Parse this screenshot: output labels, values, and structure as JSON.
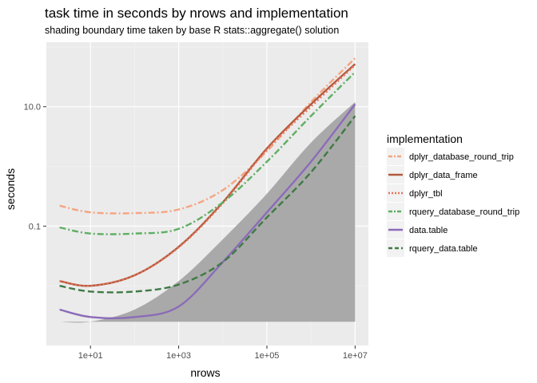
{
  "chart_data": {
    "type": "line",
    "title": "task time in seconds by nrows and implementation",
    "subtitle": "shading boundary time taken by base R stats::aggregate() solution",
    "xlabel": "nrows",
    "ylabel": "seconds",
    "x_scale": "log10",
    "y_scale": "log10",
    "xlim": [
      1,
      20000000
    ],
    "ylim": [
      0.001,
      120
    ],
    "x_ticks": [
      10,
      1000,
      100000,
      10000000
    ],
    "x_tick_labels": [
      "1e+01",
      "1e+03",
      "1e+05",
      "1e+07"
    ],
    "y_ticks": [
      0.1,
      10
    ],
    "y_tick_labels": [
      "0.1",
      "10.0"
    ],
    "grid": true,
    "legend_position": "right",
    "legend_title": "implementation",
    "shading": {
      "x": [
        2,
        10,
        100,
        1000,
        10000,
        100000,
        1000000,
        10000000
      ],
      "y": [
        0.0025,
        0.0025,
        0.004,
        0.012,
        0.06,
        0.35,
        2.5,
        12
      ]
    },
    "series": [
      {
        "name": "dplyr_database_round_trip",
        "color": "#f4a582",
        "dash": "dotdash",
        "x": [
          2,
          10,
          100,
          1000,
          10000,
          100000,
          1000000,
          10000000
        ],
        "y": [
          0.22,
          0.17,
          0.165,
          0.19,
          0.4,
          1.8,
          12,
          65
        ]
      },
      {
        "name": "dplyr_data_frame",
        "color": "#b35a3e",
        "dash": "solid",
        "x": [
          2,
          10,
          100,
          1000,
          10000,
          100000,
          1000000,
          10000000
        ],
        "y": [
          0.012,
          0.01,
          0.015,
          0.045,
          0.25,
          2.0,
          11,
          52
        ]
      },
      {
        "name": "dplyr_tbl",
        "color": "#e5735a",
        "dash": "dotted",
        "x": [
          2,
          10,
          100,
          1000,
          10000,
          100000,
          1000000,
          10000000
        ],
        "y": [
          0.012,
          0.01,
          0.015,
          0.044,
          0.24,
          1.9,
          10,
          50
        ]
      },
      {
        "name": "rquery_database_round_trip",
        "color": "#5fae63",
        "dash": "dotdash",
        "x": [
          2,
          10,
          100,
          1000,
          10000,
          100000,
          1000000,
          10000000
        ],
        "y": [
          0.095,
          0.075,
          0.075,
          0.09,
          0.25,
          1.2,
          7,
          38
        ]
      },
      {
        "name": "data.table",
        "color": "#8b6cb8",
        "dash": "solid",
        "x": [
          2,
          10,
          100,
          1000,
          10000,
          100000,
          1000000,
          10000000
        ],
        "y": [
          0.004,
          0.003,
          0.003,
          0.0045,
          0.025,
          0.17,
          1.2,
          11
        ]
      },
      {
        "name": "rquery_data.table",
        "color": "#3f7a45",
        "dash": "dashed",
        "x": [
          2,
          10,
          100,
          1000,
          10000,
          100000,
          1000000,
          10000000
        ],
        "y": [
          0.01,
          0.008,
          0.008,
          0.0105,
          0.025,
          0.14,
          0.8,
          7
        ]
      }
    ]
  }
}
